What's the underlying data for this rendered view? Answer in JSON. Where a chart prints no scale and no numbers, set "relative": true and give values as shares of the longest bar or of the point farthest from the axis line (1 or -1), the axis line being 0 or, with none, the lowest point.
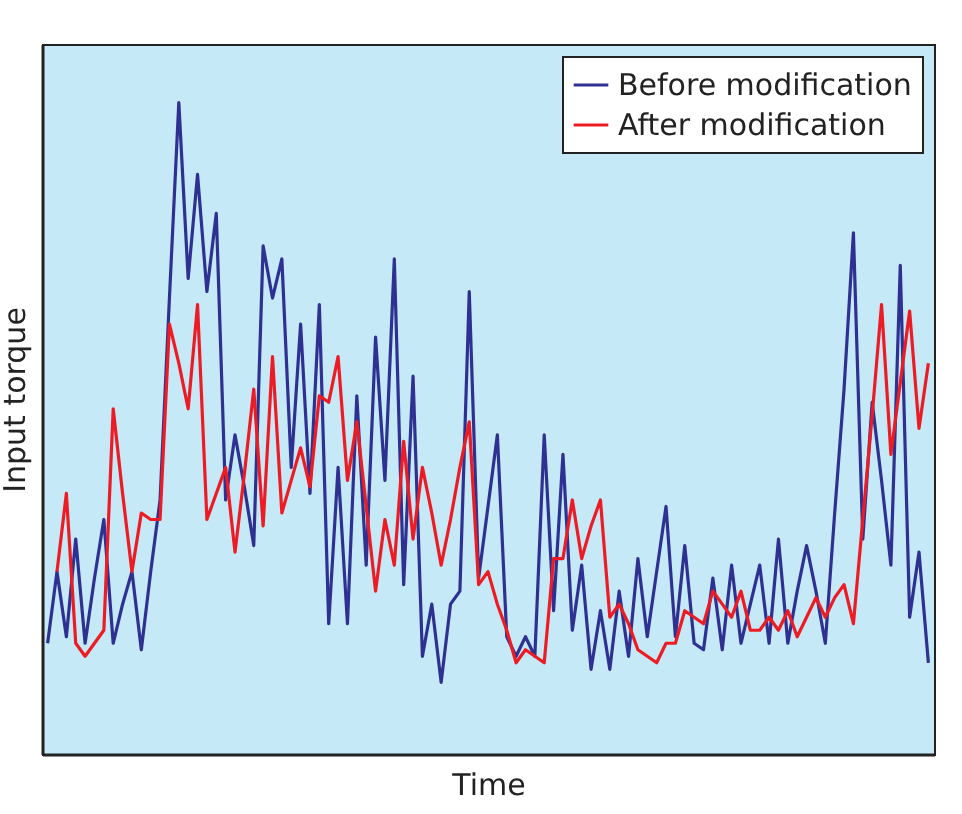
{
  "chart_data": {
    "type": "line",
    "relative": true,
    "xlabel": "Time",
    "ylabel": "Input torque",
    "legend": "top right",
    "marker": "none",
    "line_style": "solid",
    "categories": [
      null,
      null,
      null,
      null,
      null,
      null,
      null,
      null,
      null,
      null,
      null,
      null,
      null,
      null,
      null,
      null,
      null,
      null,
      null,
      null,
      null,
      null,
      null,
      null,
      null,
      null,
      null,
      null,
      null,
      null,
      null,
      null,
      null,
      null,
      null,
      null,
      null,
      null,
      null,
      null,
      null,
      null,
      null,
      null,
      null,
      null,
      null,
      null,
      null,
      null,
      null,
      null,
      null,
      null,
      null,
      null,
      null,
      null,
      null,
      null,
      null,
      null,
      null,
      null,
      null,
      null,
      null,
      null,
      null,
      null,
      null,
      null,
      null,
      null,
      null,
      null,
      null,
      null,
      null,
      null,
      null,
      null,
      null,
      null,
      null,
      null,
      null,
      null,
      null,
      null,
      null,
      null,
      null,
      null,
      null
    ],
    "series": [
      {
        "name": "Before modification",
        "color": "#2e3192",
        "values": [
          0.17,
          0.28,
          0.18,
          0.33,
          0.17,
          0.27,
          0.36,
          0.17,
          0.23,
          0.28,
          0.16,
          0.28,
          0.39,
          0.7,
          1.0,
          0.73,
          0.89,
          0.71,
          0.83,
          0.39,
          0.49,
          0.41,
          0.32,
          0.78,
          0.7,
          0.76,
          0.44,
          0.66,
          0.4,
          0.69,
          0.2,
          0.44,
          0.2,
          0.55,
          0.29,
          0.64,
          0.42,
          0.76,
          0.26,
          0.58,
          0.15,
          0.23,
          0.11,
          0.23,
          0.25,
          0.71,
          0.27,
          0.38,
          0.49,
          0.18,
          0.15,
          0.18,
          0.15,
          0.49,
          0.22,
          0.46,
          0.19,
          0.29,
          0.13,
          0.22,
          0.13,
          0.25,
          0.15,
          0.3,
          0.18,
          0.28,
          0.38,
          0.18,
          0.32,
          0.17,
          0.16,
          0.27,
          0.16,
          0.29,
          0.17,
          0.23,
          0.29,
          0.17,
          0.33,
          0.17,
          0.25,
          0.32,
          0.25,
          0.17,
          0.37,
          0.56,
          0.8,
          0.33,
          0.54,
          0.42,
          0.29,
          0.75,
          0.21,
          0.31,
          0.14
        ]
      },
      {
        "name": "After modification",
        "color": "#ed1c24",
        "values": [
          null,
          0.28,
          0.4,
          0.17,
          0.15,
          0.17,
          0.19,
          0.53,
          0.4,
          0.28,
          0.37,
          0.36,
          0.36,
          0.66,
          0.6,
          0.53,
          0.69,
          0.36,
          0.4,
          0.44,
          0.31,
          0.43,
          0.56,
          0.35,
          0.61,
          0.37,
          0.42,
          0.47,
          0.41,
          0.55,
          0.54,
          0.61,
          0.42,
          0.51,
          0.38,
          0.25,
          0.36,
          0.29,
          0.48,
          0.33,
          0.44,
          0.37,
          0.29,
          0.36,
          0.44,
          0.51,
          0.26,
          0.28,
          0.23,
          0.19,
          0.14,
          0.16,
          0.15,
          0.14,
          0.3,
          0.3,
          0.39,
          0.3,
          0.35,
          0.39,
          0.21,
          0.23,
          0.2,
          0.16,
          0.15,
          0.14,
          0.17,
          0.17,
          0.22,
          0.21,
          0.2,
          0.25,
          0.23,
          0.21,
          0.25,
          0.19,
          0.19,
          0.21,
          0.19,
          0.22,
          0.18,
          0.21,
          0.24,
          0.21,
          0.24,
          0.26,
          0.2,
          0.36,
          0.52,
          0.69,
          0.46,
          0.57,
          0.68,
          0.5,
          0.6
        ]
      }
    ]
  }
}
